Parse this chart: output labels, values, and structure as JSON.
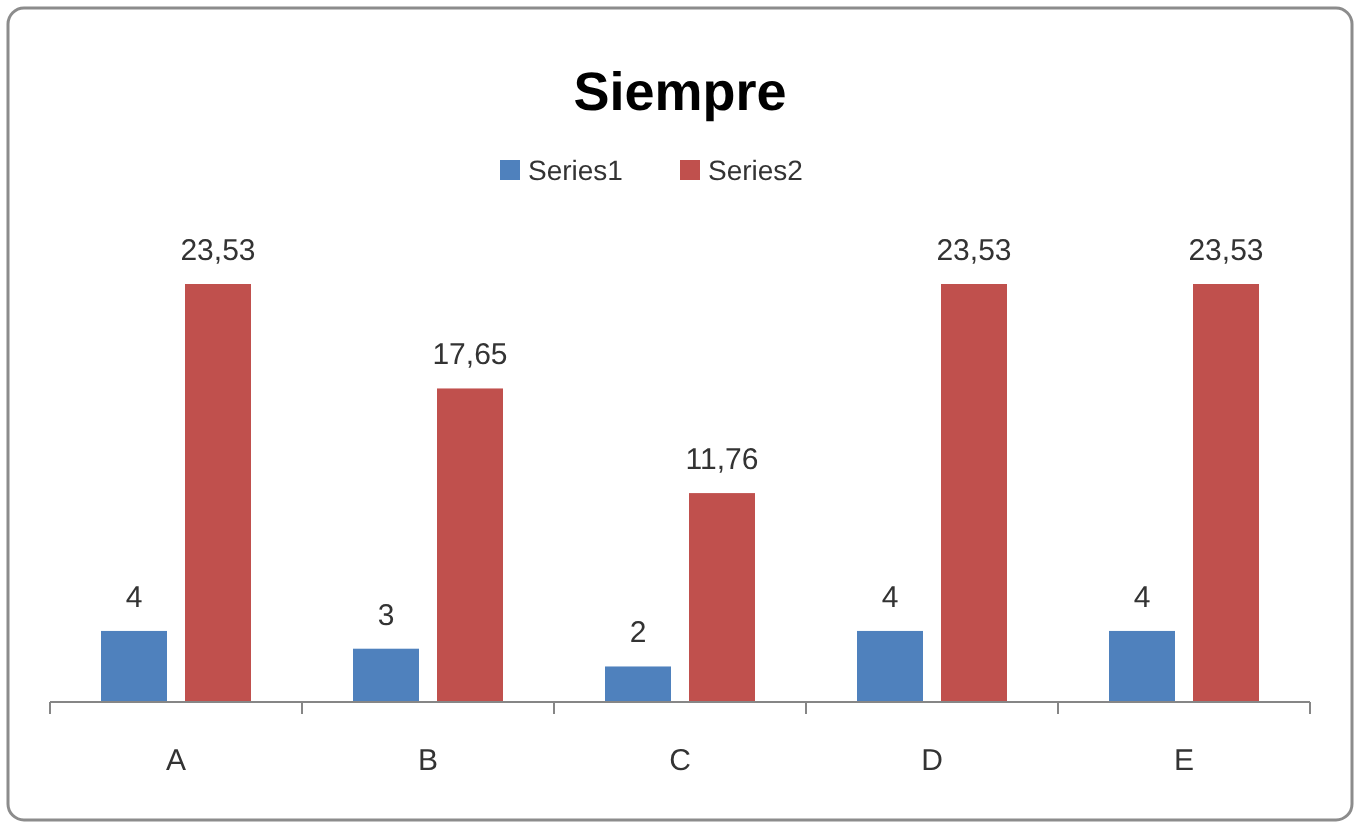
{
  "chart_data": {
    "type": "bar",
    "title": "Siempre",
    "categories": [
      "A",
      "B",
      "C",
      "D",
      "E"
    ],
    "series": [
      {
        "name": "Series1",
        "color": "#4f81bd",
        "values": [
          4,
          3,
          2,
          4,
          4
        ],
        "value_labels": [
          "4",
          "3",
          "2",
          "4",
          "4"
        ]
      },
      {
        "name": "Series2",
        "color": "#c0504d",
        "values": [
          23.53,
          17.65,
          11.76,
          23.53,
          23.53
        ],
        "value_labels": [
          "23,53",
          "17,65",
          "11,76",
          "23,53",
          "23,53"
        ]
      }
    ],
    "legend": "top"
  }
}
